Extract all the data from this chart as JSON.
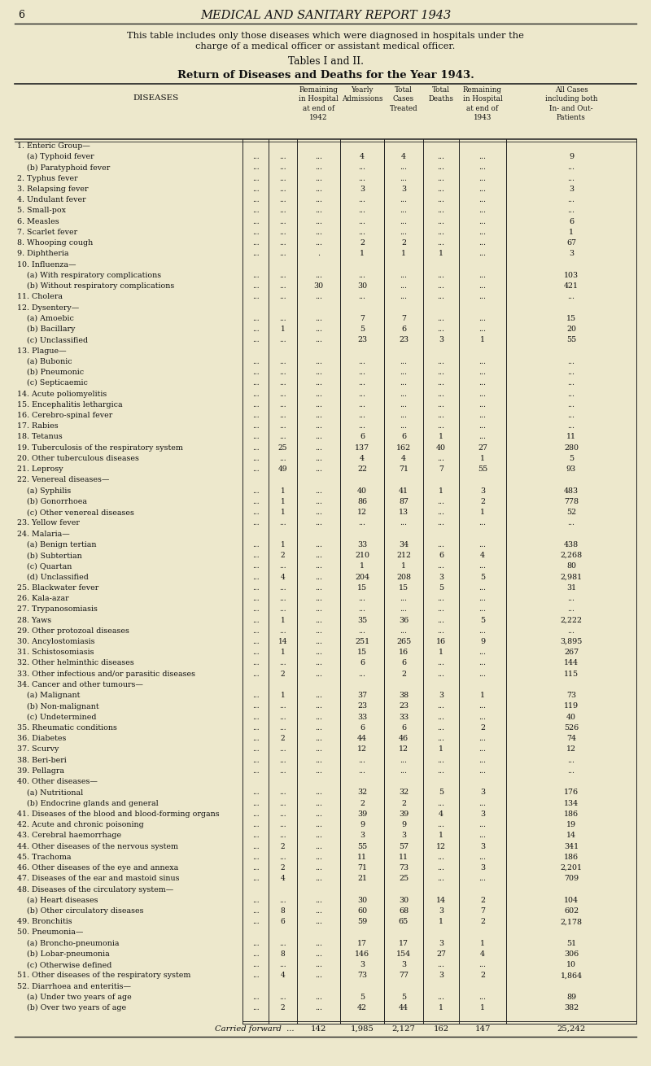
{
  "page_num": "6",
  "header_title": "MEDICAL AND SANITARY REPORT 1943",
  "intro_text": "This table includes only those diseases which were diagnosed in hospitals under the\ncharge of a medical officer or assistant medical officer.",
  "tables_label": "Tables I and II.",
  "subtitle": "Return of Diseases and Deaths for the Year 1943.",
  "col_headers": [
    "DISEASES",
    "Remaining\nin Hospital\nat end of\n1942",
    "Yearly\nAdmissions",
    "Total\nCases\nTreated",
    "Total\nDeaths",
    "Remaining\nin Hospital\nat end of\n1943",
    "All Cases\nincluding both\nIn- and Out-\nPatients"
  ],
  "rows": [
    [
      "1. Enteric Group—",
      "",
      "",
      "",
      "",
      "",
      "",
      "",
      ""
    ],
    [
      "    (a) Typhoid fever",
      "...",
      "...",
      "...",
      "4",
      "4",
      "...",
      "...",
      "9"
    ],
    [
      "    (b) Paratyphoid fever",
      "...",
      "...",
      "...",
      "...",
      "...",
      "...",
      "...",
      "..."
    ],
    [
      "2. Typhus fever",
      "...",
      "...",
      "...",
      "...",
      "...",
      "...",
      "...",
      "..."
    ],
    [
      "3. Relapsing fever",
      "...",
      "...",
      "...",
      "3",
      "3",
      "...",
      "...",
      "3"
    ],
    [
      "4. Undulant fever",
      "...",
      "...",
      "...",
      "...",
      "...",
      "...",
      "...",
      "..."
    ],
    [
      "5. Small-pox",
      "...",
      "...",
      "...",
      "...",
      "...",
      "...",
      "...",
      "..."
    ],
    [
      "6. Measles",
      "...",
      "...",
      "...",
      "...",
      "...",
      "...",
      "...",
      "6"
    ],
    [
      "7. Scarlet fever",
      "...",
      "...",
      "...",
      "...",
      "...",
      "...",
      "...",
      "1"
    ],
    [
      "8. Whooping cough",
      "...",
      "...",
      "...",
      "2",
      "2",
      "...",
      "...",
      "67"
    ],
    [
      "9. Diphtheria",
      "...",
      "...",
      ".",
      "1",
      "1",
      "1",
      "...",
      "3"
    ],
    [
      "10. Influenza—",
      "",
      "",
      "",
      "",
      "",
      "",
      "",
      ""
    ],
    [
      "    (a) With respiratory complications",
      "...",
      "...",
      "...",
      "...",
      "...",
      "...",
      "...",
      "103"
    ],
    [
      "    (b) Without respiratory complications",
      "...",
      "...",
      "30",
      "30",
      "...",
      "...",
      "...",
      "421"
    ],
    [
      "11. Cholera",
      "...",
      "...",
      "...",
      "...",
      "...",
      "...",
      "...",
      "..."
    ],
    [
      "12. Dysentery—",
      "",
      "",
      "",
      "",
      "",
      "",
      "",
      ""
    ],
    [
      "    (a) Amoebic",
      "...",
      "...",
      "...",
      "7",
      "7",
      "...",
      "...",
      "15"
    ],
    [
      "    (b) Bacillary",
      "...",
      "1",
      "...",
      "5",
      "6",
      "...",
      "...",
      "20"
    ],
    [
      "    (c) Unclassified",
      "...",
      "...",
      "...",
      "23",
      "23",
      "3",
      "1",
      "55"
    ],
    [
      "13. Plague—",
      "",
      "",
      "",
      "",
      "",
      "",
      "",
      ""
    ],
    [
      "    (a) Bubonic",
      "...",
      "...",
      "...",
      "...",
      "...",
      "...",
      "...",
      "..."
    ],
    [
      "    (b) Pneumonic",
      "...",
      "...",
      "...",
      "...",
      "...",
      "...",
      "...",
      "..."
    ],
    [
      "    (c) Septicaemic",
      "...",
      "...",
      "...",
      "...",
      "...",
      "...",
      "...",
      "..."
    ],
    [
      "14. Acute poliomyelitis",
      "...",
      "...",
      "...",
      "...",
      "...",
      "...",
      "...",
      "..."
    ],
    [
      "15. Encephalitis lethargica",
      "...",
      "...",
      "...",
      "...",
      "...",
      "...",
      "...",
      "..."
    ],
    [
      "16. Cerebro-spinal fever",
      "...",
      "...",
      "...",
      "...",
      "...",
      "...",
      "...",
      "..."
    ],
    [
      "17. Rabies",
      "...",
      "...",
      "...",
      "...",
      "...",
      "...",
      "...",
      "..."
    ],
    [
      "18. Tetanus",
      "...",
      "...",
      "...",
      "6",
      "6",
      "1",
      "...",
      "11"
    ],
    [
      "19. Tuberculosis of the respiratory system",
      "...",
      "25",
      "...",
      "137",
      "162",
      "40",
      "27",
      "280"
    ],
    [
      "20. Other tuberculous diseases",
      "...",
      "...",
      "...",
      "4",
      "4",
      "...",
      "1",
      "5"
    ],
    [
      "21. Leprosy",
      "...",
      "49",
      "...",
      "22",
      "71",
      "7",
      "55",
      "93"
    ],
    [
      "22. Venereal diseases—",
      "",
      "",
      "",
      "",
      "",
      "",
      "",
      ""
    ],
    [
      "    (a) Syphilis",
      "...",
      "1",
      "...",
      "40",
      "41",
      "1",
      "3",
      "483"
    ],
    [
      "    (b) Gonorrhoea",
      "...",
      "1",
      "...",
      "86",
      "87",
      "...",
      "2",
      "778"
    ],
    [
      "    (c) Other venereal diseases",
      "...",
      "1",
      "...",
      "12",
      "13",
      "...",
      "1",
      "52"
    ],
    [
      "23. Yellow fever",
      "...",
      "...",
      "...",
      "...",
      "...",
      "...",
      "...",
      "..."
    ],
    [
      "24. Malaria—",
      "",
      "",
      "",
      "",
      "",
      "",
      "",
      ""
    ],
    [
      "    (a) Benign tertian",
      "...",
      "1",
      "...",
      "33",
      "34",
      "...",
      "...",
      "438"
    ],
    [
      "    (b) Subtertian",
      "...",
      "2",
      "...",
      "210",
      "212",
      "6",
      "4",
      "2,268"
    ],
    [
      "    (c) Quartan",
      "...",
      "...",
      "...",
      "1",
      "1",
      "...",
      "...",
      "80"
    ],
    [
      "    (d) Unclassified",
      "...",
      "4",
      "...",
      "204",
      "208",
      "3",
      "5",
      "2,981"
    ],
    [
      "25. Blackwater fever",
      "...",
      "...",
      "...",
      "15",
      "15",
      "5",
      "...",
      "31"
    ],
    [
      "26. Kala-azar",
      "...",
      "...",
      "...",
      "...",
      "...",
      "...",
      "...",
      "..."
    ],
    [
      "27. Trypanosomiasis",
      "...",
      "...",
      "...",
      "...",
      "...",
      "...",
      "...",
      "..."
    ],
    [
      "28. Yaws",
      "...",
      "1",
      "...",
      "35",
      "36",
      "...",
      "5",
      "2,222"
    ],
    [
      "29. Other protozoal diseases",
      "...",
      "...",
      "...",
      "...",
      "...",
      "...",
      "...",
      "..."
    ],
    [
      "30. Ancylostomiasis",
      "...",
      "14",
      "...",
      "251",
      "265",
      "16",
      "9",
      "3,895"
    ],
    [
      "31. Schistosomiasis",
      "...",
      "1",
      "...",
      "15",
      "16",
      "1",
      "...",
      "267"
    ],
    [
      "32. Other helminthic diseases",
      "...",
      "...",
      "...",
      "6",
      "6",
      "...",
      "...",
      "144"
    ],
    [
      "33. Other infectious and/or parasitic diseases",
      "...",
      "2",
      "...",
      "...",
      "2",
      "...",
      "...",
      "115"
    ],
    [
      "34. Cancer and other tumours—",
      "",
      "",
      "",
      "",
      "",
      "",
      "",
      ""
    ],
    [
      "    (a) Malignant",
      "...",
      "1",
      "...",
      "37",
      "38",
      "3",
      "1",
      "73"
    ],
    [
      "    (b) Non-malignant",
      "...",
      "...",
      "...",
      "23",
      "23",
      "...",
      "...",
      "119"
    ],
    [
      "    (c) Undetermined",
      "...",
      "...",
      "...",
      "33",
      "33",
      "...",
      "...",
      "40"
    ],
    [
      "35. Rheumatic conditions",
      "...",
      "...",
      "...",
      "6",
      "6",
      "...",
      "2",
      "526"
    ],
    [
      "36. Diabetes",
      "...",
      "2",
      "...",
      "44",
      "46",
      "...",
      "...",
      "74"
    ],
    [
      "37. Scurvy",
      "...",
      "...",
      "...",
      "12",
      "12",
      "1",
      "...",
      "12"
    ],
    [
      "38. Beri-beri",
      "...",
      "...",
      "...",
      "...",
      "...",
      "...",
      "...",
      "..."
    ],
    [
      "39. Pellagra",
      "...",
      "...",
      "...",
      "...",
      "...",
      "...",
      "...",
      "..."
    ],
    [
      "40. Other diseases—",
      "",
      "",
      "",
      "",
      "",
      "",
      "",
      ""
    ],
    [
      "    (a) Nutritional",
      "...",
      "...",
      "...",
      "32",
      "32",
      "5",
      "3",
      "176"
    ],
    [
      "    (b) Endocrine glands and general",
      "...",
      "...",
      "...",
      "2",
      "2",
      "...",
      "...",
      "134"
    ],
    [
      "41. Diseases of the blood and blood-forming organs",
      "...",
      "...",
      "...",
      "39",
      "39",
      "4",
      "3",
      "186"
    ],
    [
      "42. Acute and chronic poisoning",
      "...",
      "...",
      "...",
      "9",
      "9",
      "...",
      "...",
      "19"
    ],
    [
      "43. Cerebral haemorrhage",
      "...",
      "...",
      "...",
      "3",
      "3",
      "1",
      "...",
      "14"
    ],
    [
      "44. Other diseases of the nervous system",
      "...",
      "2",
      "...",
      "55",
      "57",
      "12",
      "3",
      "341"
    ],
    [
      "45. Trachoma",
      "...",
      "...",
      "...",
      "11",
      "11",
      "...",
      "...",
      "186"
    ],
    [
      "46. Other diseases of the eye and annexa",
      "...",
      "2",
      "...",
      "71",
      "73",
      "...",
      "3",
      "2,201"
    ],
    [
      "47. Diseases of the ear and mastoid sinus",
      "...",
      "4",
      "...",
      "21",
      "25",
      "...",
      "...",
      "709"
    ],
    [
      "48. Diseases of the circulatory system—",
      "",
      "",
      "",
      "",
      "",
      "",
      "",
      ""
    ],
    [
      "    (a) Heart diseases",
      "...",
      "...",
      "...",
      "30",
      "30",
      "14",
      "2",
      "104"
    ],
    [
      "    (b) Other circulatory diseases",
      "...",
      "8",
      "...",
      "60",
      "68",
      "3",
      "7",
      "602"
    ],
    [
      "49. Bronchitis",
      "...",
      "6",
      "...",
      "59",
      "65",
      "1",
      "2",
      "2,178"
    ],
    [
      "50. Pneumonia—",
      "",
      "",
      "",
      "",
      "",
      "",
      "",
      ""
    ],
    [
      "    (a) Broncho-pneumonia",
      "...",
      "...",
      "...",
      "17",
      "17",
      "3",
      "1",
      "51"
    ],
    [
      "    (b) Lobar-pneumonia",
      "...",
      "8",
      "...",
      "146",
      "154",
      "27",
      "4",
      "306"
    ],
    [
      "    (c) Otherwise defined",
      "...",
      "...",
      "...",
      "3",
      "3",
      "...",
      "...",
      "10"
    ],
    [
      "51. Other diseases of the respiratory system",
      "...",
      "4",
      "...",
      "73",
      "77",
      "3",
      "2",
      "1,864"
    ],
    [
      "52. Diarrhoea and enteritis—",
      "",
      "",
      "",
      "",
      "",
      "",
      "",
      ""
    ],
    [
      "    (a) Under two years of age",
      "...",
      "...",
      "...",
      "5",
      "5",
      "...",
      "...",
      "89"
    ],
    [
      "    (b) Over two years of age",
      "...",
      "2",
      "...",
      "42",
      "44",
      "1",
      "1",
      "382"
    ]
  ],
  "footer_row": [
    "Carried forward  ...",
    "142",
    "1,985",
    "2,127",
    "162",
    "147",
    "25,242"
  ],
  "bg_color": "#ede8cc",
  "text_color": "#111111",
  "line_color": "#222222"
}
